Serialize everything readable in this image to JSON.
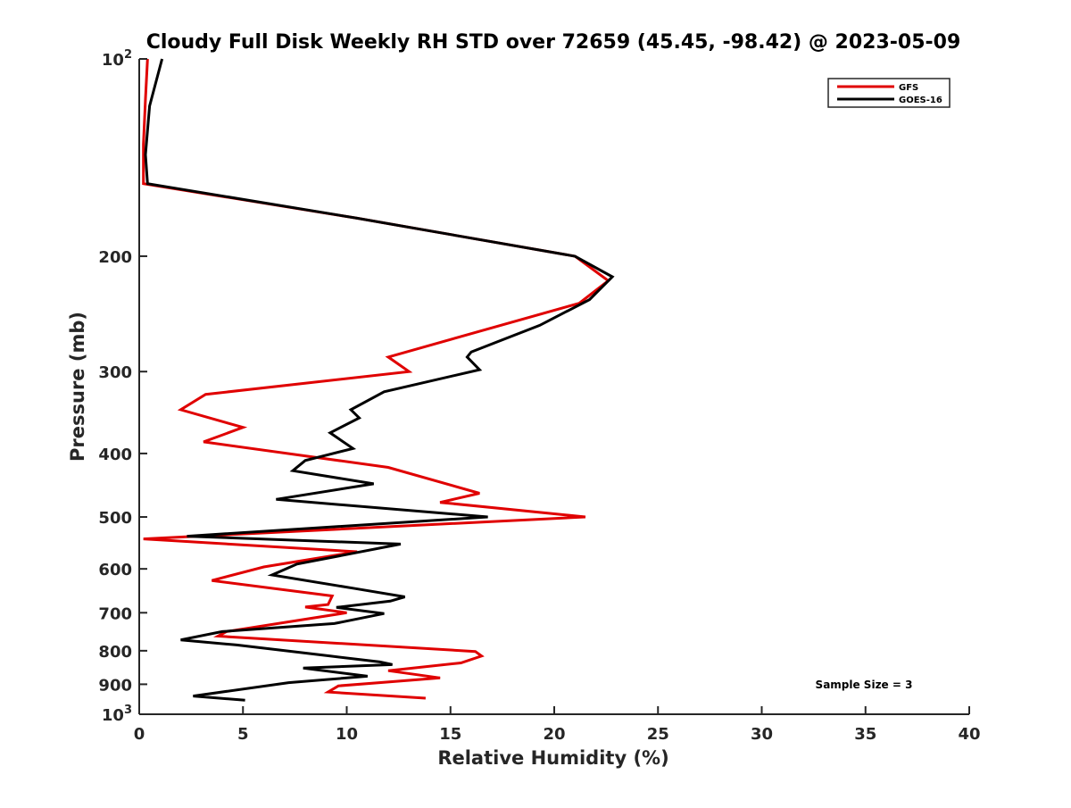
{
  "chart_data": {
    "type": "line",
    "title": "Cloudy Full Disk Weekly RH STD over 72659 (45.45, -98.42) @ 2023-05-09",
    "xlabel": "Relative Humidity (%)",
    "ylabel": "Pressure (mb)",
    "xlim": [
      0,
      40
    ],
    "ylim": [
      100,
      1000
    ],
    "y_scale": "log",
    "y_reversed": true,
    "grid": false,
    "legend_position": "top-right",
    "x_ticks": [
      0,
      5,
      10,
      15,
      20,
      25,
      30,
      35,
      40
    ],
    "x_tick_labels": [
      "0",
      "5",
      "10",
      "15",
      "20",
      "25",
      "30",
      "35",
      "40"
    ],
    "y_ticks": [
      100,
      200,
      300,
      400,
      500,
      600,
      700,
      800,
      900,
      1000
    ],
    "y_tick_labels": [
      {
        "base": "10",
        "exp": "2"
      },
      {
        "base": "200",
        "exp": ""
      },
      {
        "base": "300",
        "exp": ""
      },
      {
        "base": "400",
        "exp": ""
      },
      {
        "base": "500",
        "exp": ""
      },
      {
        "base": "600",
        "exp": ""
      },
      {
        "base": "700",
        "exp": ""
      },
      {
        "base": "800",
        "exp": ""
      },
      {
        "base": "900",
        "exp": ""
      },
      {
        "base": "10",
        "exp": "3"
      }
    ],
    "series": [
      {
        "name": "GFS",
        "color": "#e00000",
        "x": [
          0.4,
          0.3,
          0.2,
          0.2,
          0.2,
          10.5,
          21.0,
          22.6,
          21.2,
          12.0,
          13.0,
          3.2,
          2.0,
          5.0,
          3.1,
          12.0,
          16.4,
          14.5,
          21.5,
          0.2,
          10.5,
          6.0,
          3.5,
          9.3,
          9.1,
          8.0,
          10.0,
          4.2,
          3.8,
          16.2,
          16.5,
          15.5,
          12.0,
          14.5,
          9.6,
          9.1,
          13.8
        ],
        "y": [
          100,
          115,
          135,
          150,
          155,
          175,
          200,
          218,
          236,
          285,
          300,
          325,
          343,
          365,
          384,
          420,
          460,
          475,
          500,
          540,
          565,
          596,
          625,
          660,
          680,
          686,
          700,
          748,
          760,
          802,
          815,
          835,
          858,
          880,
          905,
          925,
          945
        ]
      },
      {
        "name": "GOES-16",
        "color": "#000000",
        "x": [
          1.1,
          0.5,
          0.3,
          0.4,
          10.5,
          21.0,
          22.8,
          21.7,
          19.3,
          16.0,
          15.8,
          16.4,
          11.8,
          10.2,
          10.6,
          9.2,
          10.3,
          8.0,
          7.4,
          11.3,
          6.6,
          16.8,
          2.3,
          12.6,
          7.6,
          6.4,
          10.4,
          12.8,
          12.1,
          9.5,
          11.8,
          9.4,
          4.0,
          2.0,
          4.7,
          9.2,
          11.6,
          12.2,
          7.9,
          11.0,
          7.2,
          2.6,
          5.1
        ],
        "y": [
          100,
          118,
          140,
          155,
          175,
          200,
          215,
          233,
          255,
          280,
          285,
          298,
          322,
          343,
          353,
          372,
          393,
          410,
          425,
          445,
          470,
          500,
          535,
          550,
          590,
          613,
          643,
          662,
          672,
          687,
          702,
          727,
          748,
          770,
          784,
          815,
          832,
          840,
          850,
          875,
          895,
          938,
          952
        ]
      }
    ],
    "annotation": "Sample Size = 3"
  }
}
